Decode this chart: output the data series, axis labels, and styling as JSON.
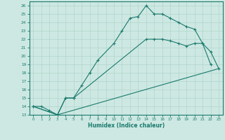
{
  "xlabel": "Humidex (Indice chaleur)",
  "xlim": [
    -0.5,
    23.5
  ],
  "ylim": [
    13,
    26.5
  ],
  "xticks": [
    0,
    1,
    2,
    3,
    4,
    5,
    6,
    7,
    8,
    9,
    10,
    11,
    12,
    13,
    14,
    15,
    16,
    17,
    18,
    19,
    20,
    21,
    22,
    23
  ],
  "yticks": [
    13,
    14,
    15,
    16,
    17,
    18,
    19,
    20,
    21,
    22,
    23,
    24,
    25,
    26
  ],
  "bg_color": "#cde8e2",
  "line_color": "#1a7a6e",
  "grid_color": "#b0d4cc",
  "line1_x": [
    0,
    1,
    2,
    3,
    4,
    5,
    6,
    7,
    8,
    10,
    11,
    12,
    13,
    14,
    15,
    16,
    17,
    18,
    19,
    20,
    21,
    22
  ],
  "line1_y": [
    14.0,
    14.0,
    13.5,
    13.0,
    15.0,
    15.0,
    16.5,
    18.0,
    19.5,
    21.5,
    23.0,
    24.5,
    24.7,
    26.0,
    25.0,
    25.0,
    24.5,
    24.0,
    23.5,
    23.2,
    21.5,
    19.0
  ],
  "line2_x": [
    0,
    3,
    4,
    5,
    14,
    15,
    16,
    17,
    18,
    19,
    20,
    21,
    22,
    23
  ],
  "line2_y": [
    14.0,
    13.0,
    15.0,
    15.0,
    22.0,
    22.0,
    22.0,
    21.8,
    21.5,
    21.2,
    21.5,
    21.5,
    20.5,
    18.5
  ],
  "line3_x": [
    0,
    3,
    23
  ],
  "line3_y": [
    14.0,
    13.0,
    18.5
  ]
}
